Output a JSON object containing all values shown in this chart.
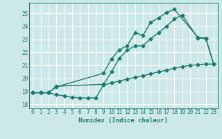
{
  "xlabel": "Humidex (Indice chaleur)",
  "xlim": [
    -0.5,
    23.5
  ],
  "ylim": [
    17.7,
    25.8
  ],
  "yticks": [
    18,
    19,
    20,
    21,
    22,
    23,
    24,
    25
  ],
  "xticks": [
    0,
    1,
    2,
    3,
    4,
    5,
    6,
    7,
    8,
    9,
    10,
    11,
    12,
    13,
    14,
    15,
    16,
    17,
    18,
    19,
    20,
    21,
    22,
    23
  ],
  "bg_color": "#cde8e8",
  "grid_color": "#ffffff",
  "line_color": "#1a7a6e",
  "line1_x": [
    0,
    1,
    2,
    3,
    9,
    10,
    11,
    12,
    13,
    14,
    15,
    16,
    17,
    18,
    21,
    22,
    23
  ],
  "line1_y": [
    18.9,
    18.9,
    18.9,
    19.35,
    20.4,
    21.5,
    22.2,
    22.5,
    23.5,
    23.3,
    24.3,
    24.65,
    25.05,
    25.3,
    23.15,
    23.1,
    21.1
  ],
  "line2_x": [
    0,
    1,
    2,
    3,
    9,
    10,
    11,
    12,
    13,
    14,
    15,
    16,
    17,
    18,
    19,
    21,
    22,
    23
  ],
  "line2_y": [
    18.9,
    18.9,
    18.9,
    19.4,
    19.55,
    20.5,
    21.55,
    22.15,
    22.5,
    22.5,
    23.05,
    23.5,
    24.0,
    24.55,
    24.85,
    23.1,
    23.05,
    21.1
  ],
  "line3_x": [
    0,
    1,
    2,
    3,
    4,
    5,
    6,
    7,
    8,
    9,
    10,
    11,
    12,
    13,
    14,
    15,
    16,
    17,
    18,
    19,
    20,
    21,
    22,
    23
  ],
  "line3_y": [
    18.9,
    18.9,
    18.9,
    18.75,
    18.65,
    18.55,
    18.5,
    18.5,
    18.5,
    19.5,
    19.65,
    19.8,
    19.95,
    20.08,
    20.2,
    20.35,
    20.5,
    20.62,
    20.78,
    20.9,
    21.0,
    21.05,
    21.1,
    21.1
  ],
  "marker": "D",
  "marker_size": 2.5,
  "line_width": 1.0
}
